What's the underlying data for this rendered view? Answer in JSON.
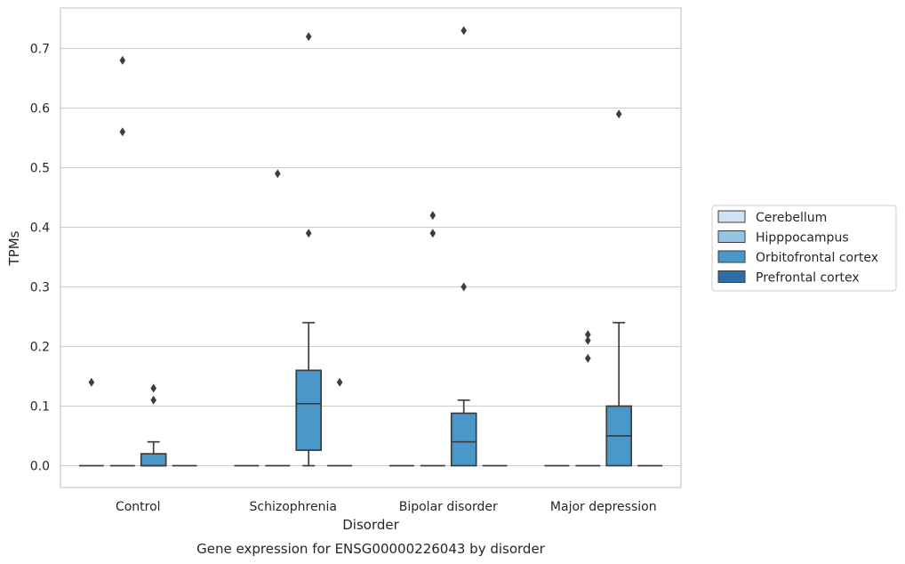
{
  "chart_data": {
    "type": "box",
    "caption": "Gene expression for ENSG00000226043 by disorder",
    "xlabel": "Disorder",
    "ylabel": "TPMs",
    "ylim": [
      -0.035,
      0.77
    ],
    "yticks": [
      "0.0",
      "0.1",
      "0.2",
      "0.3",
      "0.4",
      "0.5",
      "0.6",
      "0.7"
    ],
    "ytick_values": [
      0.0,
      0.1,
      0.2,
      0.3,
      0.4,
      0.5,
      0.6,
      0.7
    ],
    "grid": true,
    "legend_position": "right",
    "categories": [
      "Control",
      "Schizophrenia",
      "Bipolar disorder",
      "Major depression"
    ],
    "hues": [
      {
        "name": "Cerebellum",
        "color": "#d0e1f2"
      },
      {
        "name": "Hipppocampus",
        "color": "#94c4df"
      },
      {
        "name": "Orbitofrontal cortex",
        "color": "#4a98c9"
      },
      {
        "name": "Prefrontal cortex",
        "color": "#2e6ea8"
      }
    ],
    "boxes": [
      {
        "category": "Control",
        "hue": "Cerebellum",
        "q1": 0,
        "median": 0,
        "q3": 0,
        "whisker_low": 0,
        "whisker_high": 0,
        "outliers": [
          0.14
        ]
      },
      {
        "category": "Control",
        "hue": "Hipppocampus",
        "q1": 0,
        "median": 0,
        "q3": 0,
        "whisker_low": 0,
        "whisker_high": 0,
        "outliers": [
          0.56,
          0.68
        ]
      },
      {
        "category": "Control",
        "hue": "Orbitofrontal cortex",
        "q1": 0,
        "median": 0,
        "q3": 0.02,
        "whisker_low": 0,
        "whisker_high": 0.04,
        "outliers": [
          0.11,
          0.13
        ]
      },
      {
        "category": "Control",
        "hue": "Prefrontal cortex",
        "q1": 0,
        "median": 0,
        "q3": 0,
        "whisker_low": 0,
        "whisker_high": 0,
        "outliers": []
      },
      {
        "category": "Schizophrenia",
        "hue": "Cerebellum",
        "q1": 0,
        "median": 0,
        "q3": 0,
        "whisker_low": 0,
        "whisker_high": 0,
        "outliers": []
      },
      {
        "category": "Schizophrenia",
        "hue": "Hipppocampus",
        "q1": 0,
        "median": 0,
        "q3": 0,
        "whisker_low": 0,
        "whisker_high": 0,
        "outliers": [
          0.49
        ]
      },
      {
        "category": "Schizophrenia",
        "hue": "Orbitofrontal cortex",
        "q1": 0.026,
        "median": 0.104,
        "q3": 0.16,
        "whisker_low": 0,
        "whisker_high": 0.24,
        "outliers": [
          0.39,
          0.72
        ]
      },
      {
        "category": "Schizophrenia",
        "hue": "Prefrontal cortex",
        "q1": 0,
        "median": 0,
        "q3": 0,
        "whisker_low": 0,
        "whisker_high": 0,
        "outliers": [
          0.14
        ]
      },
      {
        "category": "Bipolar disorder",
        "hue": "Cerebellum",
        "q1": 0,
        "median": 0,
        "q3": 0,
        "whisker_low": 0,
        "whisker_high": 0,
        "outliers": []
      },
      {
        "category": "Bipolar disorder",
        "hue": "Hipppocampus",
        "q1": 0,
        "median": 0,
        "q3": 0,
        "whisker_low": 0,
        "whisker_high": 0,
        "outliers": [
          0.39,
          0.42
        ]
      },
      {
        "category": "Bipolar disorder",
        "hue": "Orbitofrontal cortex",
        "q1": 0,
        "median": 0.04,
        "q3": 0.088,
        "whisker_low": 0,
        "whisker_high": 0.11,
        "outliers": [
          0.3,
          0.73
        ]
      },
      {
        "category": "Bipolar disorder",
        "hue": "Prefrontal cortex",
        "q1": 0,
        "median": 0,
        "q3": 0,
        "whisker_low": 0,
        "whisker_high": 0,
        "outliers": []
      },
      {
        "category": "Major depression",
        "hue": "Cerebellum",
        "q1": 0,
        "median": 0,
        "q3": 0,
        "whisker_low": 0,
        "whisker_high": 0,
        "outliers": []
      },
      {
        "category": "Major depression",
        "hue": "Hipppocampus",
        "q1": 0,
        "median": 0,
        "q3": 0,
        "whisker_low": 0,
        "whisker_high": 0,
        "outliers": [
          0.18,
          0.21,
          0.22
        ]
      },
      {
        "category": "Major depression",
        "hue": "Orbitofrontal cortex",
        "q1": 0,
        "median": 0.05,
        "q3": 0.1,
        "whisker_low": 0,
        "whisker_high": 0.24,
        "outliers": [
          0.59
        ]
      },
      {
        "category": "Major depression",
        "hue": "Prefrontal cortex",
        "q1": 0,
        "median": 0,
        "q3": 0,
        "whisker_low": 0,
        "whisker_high": 0,
        "outliers": []
      }
    ]
  }
}
